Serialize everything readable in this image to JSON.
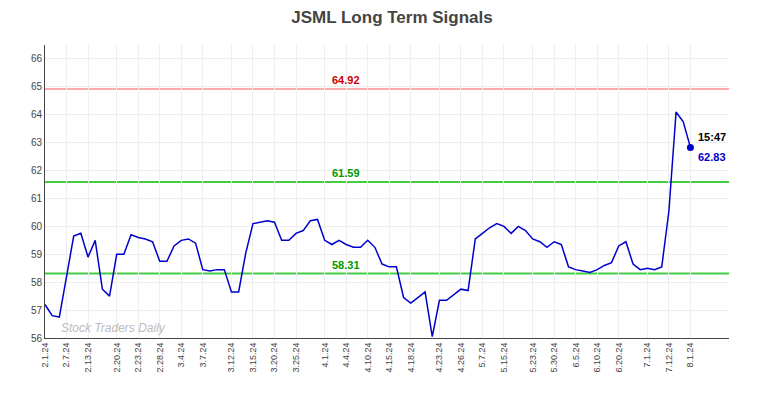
{
  "chart_data": {
    "type": "line",
    "title": "JSML Long Term Signals",
    "watermark": "Stock Traders Daily",
    "categories": [
      "2.1.24",
      null,
      null,
      "2.7.24",
      null,
      null,
      "2.13.24",
      null,
      null,
      null,
      "2.20.24",
      null,
      null,
      "2.23.24",
      null,
      null,
      "2.28.24",
      null,
      null,
      "3.4.24",
      null,
      null,
      "3.7.24",
      null,
      null,
      null,
      "3.12.24",
      null,
      null,
      "3.15.24",
      null,
      null,
      "3.20.24",
      null,
      null,
      "3.25.24",
      null,
      null,
      null,
      "4.1.24",
      null,
      null,
      "4.4.24",
      null,
      null,
      "4.10.24",
      null,
      null,
      "4.15.24",
      null,
      null,
      "4.18.24",
      null,
      null,
      null,
      "4.23.24",
      null,
      null,
      "4.26.24",
      null,
      null,
      "5.7.24",
      null,
      null,
      "5.15.24",
      null,
      null,
      null,
      "5.23.24",
      null,
      null,
      "5.30.24",
      null,
      null,
      "6.5.24",
      null,
      null,
      "6.10.24",
      null,
      null,
      "6.20.24",
      null,
      null,
      null,
      "7.1.24",
      null,
      null,
      "7.12.24",
      null,
      null,
      "8.1.24"
    ],
    "values": [
      57.2,
      56.8,
      56.75,
      58.2,
      59.65,
      59.75,
      58.9,
      59.5,
      57.75,
      57.5,
      59.0,
      59.0,
      59.7,
      59.6,
      59.55,
      59.45,
      58.75,
      58.75,
      59.3,
      59.5,
      59.55,
      59.4,
      58.45,
      58.4,
      58.45,
      58.45,
      57.65,
      57.65,
      59.05,
      60.1,
      60.15,
      60.2,
      60.15,
      59.5,
      59.5,
      59.75,
      59.85,
      60.2,
      60.25,
      59.5,
      59.35,
      59.5,
      59.35,
      59.25,
      59.25,
      59.5,
      59.25,
      58.65,
      58.55,
      58.55,
      57.45,
      57.25,
      57.45,
      57.65,
      56.05,
      57.35,
      57.35,
      57.55,
      57.75,
      57.7,
      59.55,
      59.75,
      59.95,
      60.1,
      60.0,
      59.75,
      60.0,
      59.85,
      59.55,
      59.45,
      59.25,
      59.45,
      59.35,
      58.55,
      58.45,
      58.4,
      58.35,
      58.45,
      58.6,
      58.7,
      59.3,
      59.45,
      58.65,
      58.45,
      58.5,
      58.45,
      58.55,
      60.55,
      64.1,
      63.75,
      62.83
    ],
    "color": "#0000cc",
    "last_point": {
      "value": 62.83,
      "time_label": "15:47",
      "label": "62.83"
    },
    "reference_lines": [
      {
        "value": 61.59,
        "label": "61.59",
        "color": "#44cc44",
        "label_color": "#009900"
      },
      {
        "value": 58.31,
        "label": "58.31",
        "color": "#44cc44",
        "label_color": "#009900"
      },
      {
        "value": 64.92,
        "label": "64.92",
        "color": "#ffaaaa",
        "label_color": "#cc0000"
      }
    ],
    "ylim": [
      56,
      66.5
    ],
    "yticks": [
      56,
      57,
      58,
      59,
      60,
      61,
      62,
      63,
      64,
      65,
      66
    ],
    "grid": true
  }
}
